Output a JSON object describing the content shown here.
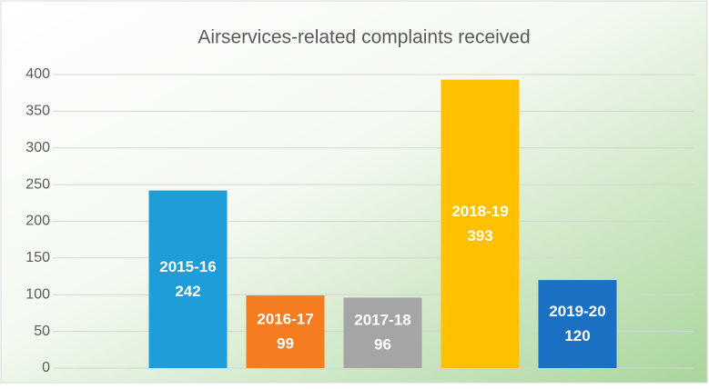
{
  "chart_data": {
    "type": "bar",
    "title": "Airservices-related complaints received",
    "categories": [
      "2015-16",
      "2016-17",
      "2017-18",
      "2018-19",
      "2019-20"
    ],
    "values": [
      242,
      99,
      96,
      393,
      120
    ],
    "colors": [
      "#1f9dd9",
      "#f47c21",
      "#a5a5a5",
      "#ffc000",
      "#1b70c4"
    ],
    "ylim": [
      0,
      400
    ],
    "yticks": [
      0,
      50,
      100,
      150,
      200,
      250,
      300,
      350,
      400
    ],
    "grid": true
  }
}
